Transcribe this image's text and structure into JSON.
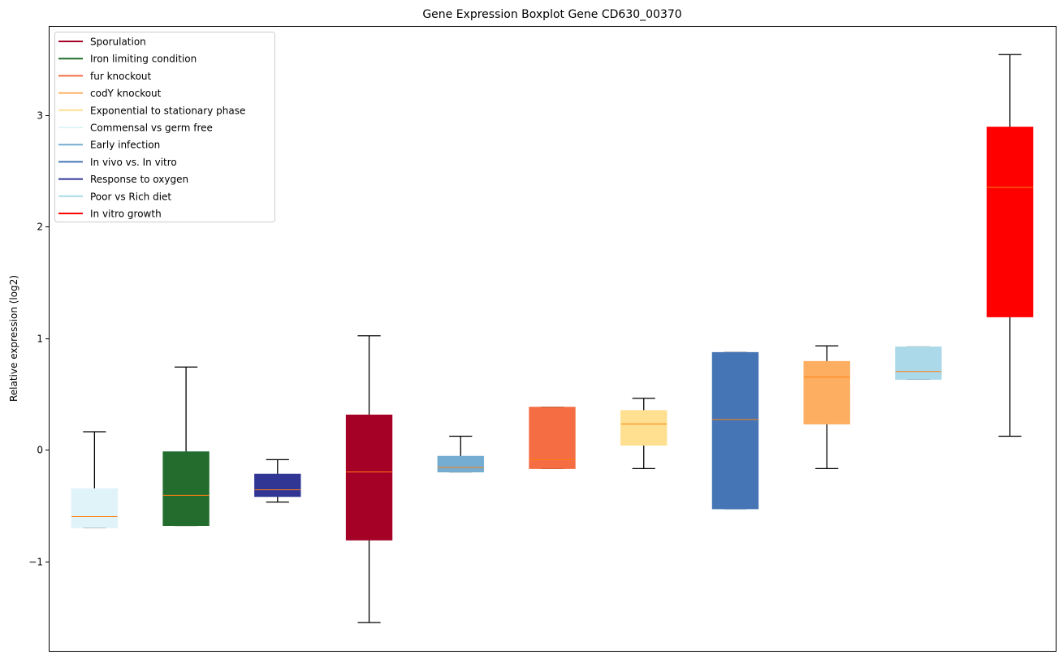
{
  "chart_data": {
    "type": "boxplot",
    "title": "Gene Expression Boxplot Gene CD630_00370",
    "xlabel": "",
    "ylabel": "Relative expression (log2)",
    "ylim": [
      -1.8,
      3.8
    ],
    "yticks": [
      -1,
      0,
      1,
      2,
      3
    ],
    "ytick_labels": [
      "−1",
      "0",
      "1",
      "2",
      "3"
    ],
    "grid": false,
    "legend_position": "top-left",
    "median_color": "#ff7f0e",
    "legend": [
      {
        "label": "Sporulation",
        "color": "#a50026"
      },
      {
        "label": "Iron limiting condition",
        "color": "#236c2e"
      },
      {
        "label": "fur knockout",
        "color": "#f46d43"
      },
      {
        "label": "codY knockout",
        "color": "#fdae61"
      },
      {
        "label": "Exponential to stationary phase",
        "color": "#fee090"
      },
      {
        "label": "Commensal vs germ free",
        "color": "#e0f3f8"
      },
      {
        "label": "Early infection",
        "color": "#74add1"
      },
      {
        "label": "In vivo vs. In vitro",
        "color": "#4575b4"
      },
      {
        "label": "Response to oxygen",
        "color": "#313695"
      },
      {
        "label": "Poor vs Rich diet",
        "color": "#abd9e9"
      },
      {
        "label": "In vitro growth",
        "color": "#ff0000"
      }
    ],
    "boxes": [
      {
        "condition": "Commensal vs germ free",
        "color": "#e0f3f8",
        "whislo": -0.7,
        "q1": -0.7,
        "median": -0.6,
        "q3": -0.35,
        "whishi": 0.16
      },
      {
        "condition": "Iron limiting condition",
        "color": "#236c2e",
        "whislo": -0.68,
        "q1": -0.68,
        "median": -0.41,
        "q3": -0.02,
        "whishi": 0.74
      },
      {
        "condition": "Response to oxygen",
        "color": "#313695",
        "whislo": -0.47,
        "q1": -0.42,
        "median": -0.36,
        "q3": -0.22,
        "whishi": -0.09
      },
      {
        "condition": "Sporulation",
        "color": "#a50026",
        "whislo": -1.55,
        "q1": -0.81,
        "median": -0.2,
        "q3": 0.31,
        "whishi": 1.02
      },
      {
        "condition": "Early infection",
        "color": "#74add1",
        "whislo": -0.2,
        "q1": -0.2,
        "median": -0.16,
        "q3": -0.06,
        "whishi": 0.12
      },
      {
        "condition": "fur knockout",
        "color": "#f46d43",
        "whislo": -0.17,
        "q1": -0.17,
        "median": -0.09,
        "q3": 0.38,
        "whishi": 0.38
      },
      {
        "condition": "Exponential to stationary phase",
        "color": "#fee090",
        "whislo": -0.17,
        "q1": 0.04,
        "median": 0.23,
        "q3": 0.35,
        "whishi": 0.46
      },
      {
        "condition": "In vivo vs. In vitro",
        "color": "#4575b4",
        "whislo": -0.53,
        "q1": -0.53,
        "median": 0.27,
        "q3": 0.87,
        "whishi": 0.87
      },
      {
        "condition": "codY knockout",
        "color": "#fdae61",
        "whislo": -0.17,
        "q1": 0.23,
        "median": 0.65,
        "q3": 0.79,
        "whishi": 0.93
      },
      {
        "condition": "Poor vs Rich diet",
        "color": "#abd9e9",
        "whislo": 0.63,
        "q1": 0.63,
        "median": 0.7,
        "q3": 0.92,
        "whishi": 0.92
      },
      {
        "condition": "In vitro growth",
        "color": "#ff0000",
        "whislo": 0.12,
        "q1": 1.19,
        "median": 2.35,
        "q3": 2.89,
        "whishi": 3.54
      }
    ]
  }
}
